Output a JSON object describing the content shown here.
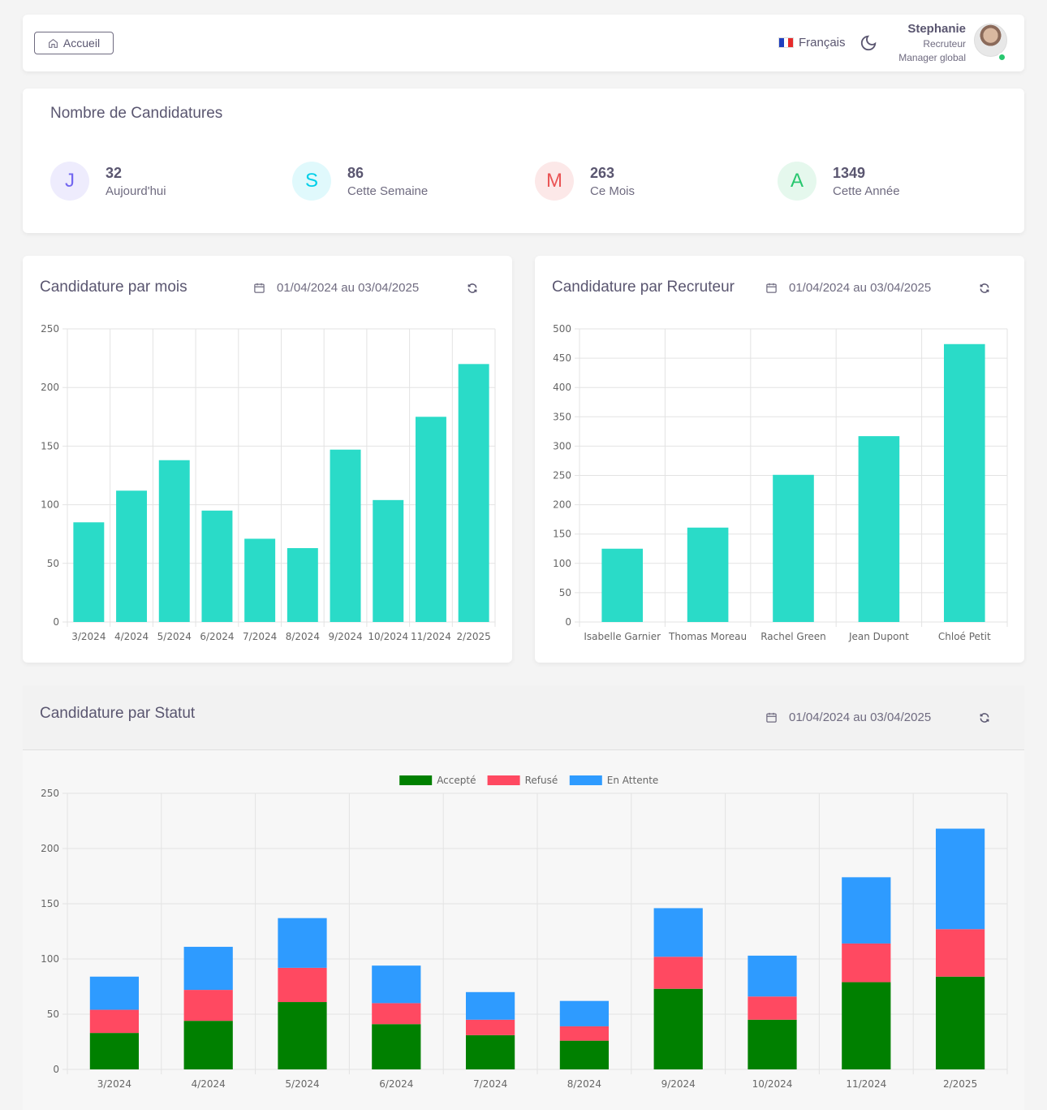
{
  "header": {
    "home_label": "Accueil",
    "language": "Français",
    "user": {
      "name": "Stephanie",
      "role": "Recruteur",
      "subrole": "Manager global"
    }
  },
  "stats": {
    "title": "Nombre de Candidatures",
    "items": [
      {
        "letter": "J",
        "value": "32",
        "label": "Aujourd'hui",
        "color": "#7367f0",
        "bg": "#eeecfd"
      },
      {
        "letter": "S",
        "value": "86",
        "label": "Cette Semaine",
        "color": "#00cfe8",
        "bg": "#e0f9fc"
      },
      {
        "letter": "M",
        "value": "263",
        "label": "Ce Mois",
        "color": "#ea5455",
        "bg": "#fce8e8"
      },
      {
        "letter": "A",
        "value": "1349",
        "label": "Cette Année",
        "color": "#28c76f",
        "bg": "#e5f8ed"
      }
    ]
  },
  "cards": {
    "month": {
      "title": "Candidature par mois",
      "range": "01/04/2024 au 03/04/2025"
    },
    "recruiter": {
      "title": "Candidature par Recruteur",
      "range": "01/04/2024 au 03/04/2025"
    },
    "status": {
      "title": "Candidature par Statut",
      "range": "01/04/2024 au 03/04/2025"
    }
  },
  "chart_data": [
    {
      "type": "bar",
      "categories": [
        "3/2024",
        "4/2024",
        "5/2024",
        "6/2024",
        "7/2024",
        "8/2024",
        "9/2024",
        "10/2024",
        "11/2024",
        "2/2025"
      ],
      "values": [
        85,
        112,
        138,
        95,
        71,
        63,
        147,
        104,
        175,
        220
      ],
      "ylim": [
        0,
        250
      ],
      "yticks": [
        0,
        50,
        100,
        150,
        200,
        250
      ],
      "grid": true,
      "color": "#2adbc8"
    },
    {
      "type": "bar",
      "categories": [
        "Isabelle Garnier",
        "Thomas Moreau",
        "Rachel Green",
        "Jean Dupont",
        "Chloé Petit"
      ],
      "values": [
        125,
        161,
        251,
        317,
        474
      ],
      "ylim": [
        0,
        500
      ],
      "yticks": [
        0,
        50,
        100,
        150,
        200,
        250,
        300,
        350,
        400,
        450,
        500
      ],
      "grid": true,
      "color": "#2adbc8"
    },
    {
      "type": "bar",
      "stacked": true,
      "categories": [
        "3/2024",
        "4/2024",
        "5/2024",
        "6/2024",
        "7/2024",
        "8/2024",
        "9/2024",
        "10/2024",
        "11/2024",
        "2/2025"
      ],
      "series": [
        {
          "name": "Accepté",
          "color": "#008000",
          "values": [
            33,
            44,
            61,
            41,
            31,
            26,
            73,
            45,
            79,
            84
          ]
        },
        {
          "name": "Refusé",
          "color": "#ff4961",
          "values": [
            21,
            28,
            31,
            19,
            14,
            13,
            29,
            21,
            35,
            43
          ]
        },
        {
          "name": "En Attente",
          "color": "#2e9bff",
          "values": [
            30,
            39,
            45,
            34,
            25,
            23,
            44,
            37,
            60,
            91
          ]
        }
      ],
      "ylim": [
        0,
        250
      ],
      "yticks": [
        0,
        50,
        100,
        150,
        200,
        250
      ],
      "grid": true,
      "legend": "top-center"
    }
  ]
}
